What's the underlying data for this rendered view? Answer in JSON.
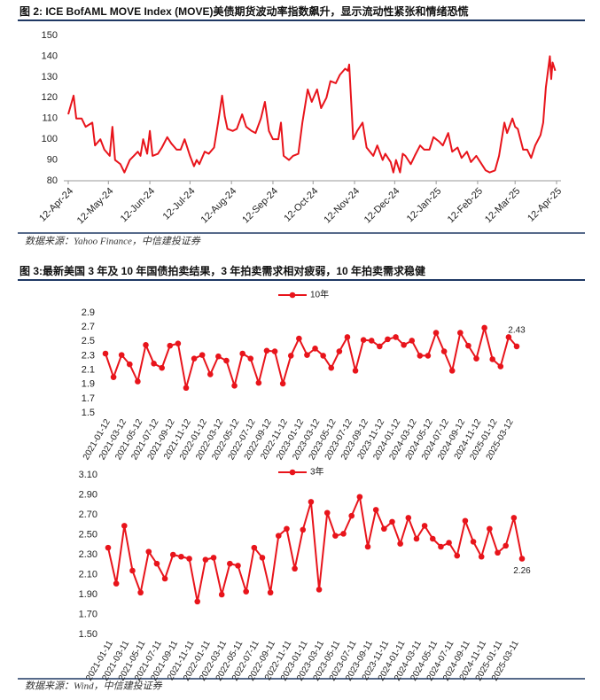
{
  "chart_data": [
    {
      "type": "line",
      "title": "图 2: ICE BofAML MOVE Index (MOVE)美债期货波动率指数飙升，显示流动性紧张和情绪恐慌",
      "source": "数据来源：Yahoo Finance，中信建投证券",
      "x": [
        "2024-04-12",
        "2024-04-16",
        "2024-04-18",
        "2024-04-22",
        "2024-04-25",
        "2024-04-30",
        "2024-05-02",
        "2024-05-06",
        "2024-05-09",
        "2024-05-13",
        "2024-05-15",
        "2024-05-17",
        "2024-05-21",
        "2024-05-24",
        "2024-05-28",
        "2024-05-31",
        "2024-06-03",
        "2024-06-05",
        "2024-06-07",
        "2024-06-10",
        "2024-06-12",
        "2024-06-14",
        "2024-06-18",
        "2024-06-21",
        "2024-06-25",
        "2024-06-28",
        "2024-07-02",
        "2024-07-05",
        "2024-07-08",
        "2024-07-10",
        "2024-07-12",
        "2024-07-15",
        "2024-07-17",
        "2024-07-19",
        "2024-07-23",
        "2024-07-26",
        "2024-07-30",
        "2024-08-02",
        "2024-08-05",
        "2024-08-07",
        "2024-08-09",
        "2024-08-13",
        "2024-08-16",
        "2024-08-20",
        "2024-08-23",
        "2024-08-27",
        "2024-08-30",
        "2024-09-03",
        "2024-09-06",
        "2024-09-09",
        "2024-09-12",
        "2024-09-16",
        "2024-09-18",
        "2024-09-20",
        "2024-09-24",
        "2024-09-27",
        "2024-10-01",
        "2024-10-04",
        "2024-10-08",
        "2024-10-11",
        "2024-10-15",
        "2024-10-18",
        "2024-10-22",
        "2024-10-25",
        "2024-10-29",
        "2024-11-01",
        "2024-11-05",
        "2024-11-07",
        "2024-11-08",
        "2024-11-11",
        "2024-11-14",
        "2024-11-18",
        "2024-11-21",
        "2024-11-26",
        "2024-11-29",
        "2024-12-03",
        "2024-12-05",
        "2024-12-09",
        "2024-12-11",
        "2024-12-13",
        "2024-12-16",
        "2024-12-18",
        "2024-12-20",
        "2024-12-24",
        "2024-12-27",
        "2024-12-31",
        "2025-01-03",
        "2025-01-07",
        "2025-01-10",
        "2025-01-14",
        "2025-01-17",
        "2025-01-21",
        "2025-01-24",
        "2025-01-28",
        "2025-01-31",
        "2025-02-04",
        "2025-02-07",
        "2025-02-11",
        "2025-02-13",
        "2025-02-18",
        "2025-02-21",
        "2025-02-25",
        "2025-02-28",
        "2025-03-04",
        "2025-03-06",
        "2025-03-10",
        "2025-03-12",
        "2025-03-14",
        "2025-03-18",
        "2025-03-21",
        "2025-03-24",
        "2025-03-27",
        "2025-03-31",
        "2025-04-02",
        "2025-04-04",
        "2025-04-07",
        "2025-04-08",
        "2025-04-09",
        "2025-04-11"
      ],
      "series": [
        {
          "color": "#e8141b",
          "values": [
            112,
            121,
            110,
            110,
            106,
            108,
            97,
            100,
            95,
            92,
            106,
            90,
            88,
            84,
            90,
            92,
            94,
            92,
            100,
            93,
            104,
            92,
            93,
            96,
            101,
            98,
            95,
            95,
            100,
            96,
            92,
            87,
            90,
            88,
            94,
            93,
            96,
            108,
            121,
            111,
            105,
            104,
            105,
            112,
            106,
            104,
            103,
            110,
            118,
            104,
            100,
            100,
            108,
            92,
            90,
            92,
            93,
            108,
            124,
            118,
            124,
            115,
            120,
            128,
            127,
            131,
            134,
            133,
            136,
            100,
            104,
            108,
            96,
            92,
            97,
            90,
            93,
            89,
            84,
            90,
            84,
            93,
            92,
            88,
            92,
            97,
            95,
            95,
            101,
            99,
            97,
            103,
            94,
            96,
            91,
            94,
            89,
            92,
            90,
            85,
            84,
            85,
            92,
            108,
            103,
            110,
            106,
            105,
            95,
            95,
            91,
            97,
            102,
            108,
            125,
            140,
            129,
            137,
            133
          ]
        }
      ],
      "xlim": [
        "2024-04-12",
        "2025-04-12"
      ],
      "xticks": [
        {
          "value": "2024-04-12",
          "label": "12-Apr-24"
        },
        {
          "value": "2024-05-12",
          "label": "12-May-24"
        },
        {
          "value": "2024-06-12",
          "label": "12-Jun-24"
        },
        {
          "value": "2024-07-12",
          "label": "12-Jul-24"
        },
        {
          "value": "2024-08-12",
          "label": "12-Aug-24"
        },
        {
          "value": "2024-09-12",
          "label": "12-Sep-24"
        },
        {
          "value": "2024-10-12",
          "label": "12-Oct-24"
        },
        {
          "value": "2024-11-12",
          "label": "12-Nov-24"
        },
        {
          "value": "2024-12-12",
          "label": "12-Dec-24"
        },
        {
          "value": "2025-01-12",
          "label": "12-Jan-25"
        },
        {
          "value": "2025-02-12",
          "label": "12-Feb-25"
        },
        {
          "value": "2025-03-12",
          "label": "12-Mar-25"
        },
        {
          "value": "2025-04-12",
          "label": "12-Apr-25"
        }
      ],
      "ylim": [
        80,
        150
      ],
      "yticks": [
        80,
        90,
        100,
        110,
        120,
        130,
        140,
        150
      ],
      "markers": false,
      "legend": false
    },
    {
      "type": "line",
      "title": "图 3:最新美国 3 年及 10 年国债拍卖结果，3 年拍卖需求相对疲弱，10 年拍卖需求稳健",
      "categories": [
        "2021-01-12",
        null,
        "2021-03-12",
        null,
        "2021-05-12",
        null,
        "2021-07-12",
        null,
        "2021-09-12",
        null,
        "2021-11-12",
        null,
        "2022-01-12",
        null,
        "2022-03-12",
        null,
        "2022-05-12",
        null,
        "2022-07-12",
        null,
        "2022-09-12",
        null,
        "2022-11-12",
        null,
        "2023-01-12",
        null,
        "2023-03-12",
        null,
        "2023-05-12",
        null,
        "2023-07-12",
        null,
        "2023-09-12",
        null,
        "2023-11-12",
        null,
        "2024-01-12",
        null,
        "2024-03-12",
        null,
        "2024-05-12",
        null,
        "2024-07-12",
        null,
        "2024-09-12",
        null,
        "2024-11-12",
        null,
        "2025-01-12",
        null,
        "2025-03-12",
        null
      ],
      "series": [
        {
          "name": "10年",
          "color": "#e8141b",
          "values": [
            2.33,
            2.0,
            2.31,
            2.18,
            1.94,
            2.45,
            2.19,
            2.13,
            2.44,
            2.47,
            1.85,
            2.26,
            2.31,
            2.04,
            2.29,
            2.23,
            1.88,
            2.33,
            2.26,
            1.92,
            2.37,
            2.36,
            1.91,
            2.3,
            2.54,
            2.31,
            2.4,
            2.3,
            2.13,
            2.36,
            2.56,
            2.09,
            2.52,
            2.51,
            2.43,
            2.53,
            2.56,
            2.45,
            2.51,
            2.3,
            2.3,
            2.62,
            2.36,
            2.09,
            2.62,
            2.44,
            2.26,
            2.69,
            2.25,
            2.15,
            2.56,
            2.43
          ]
        }
      ],
      "ylim": [
        1.5,
        2.9
      ],
      "yticks": [
        1.5,
        1.7,
        1.9,
        2.1,
        2.3,
        2.5,
        2.7,
        2.9
      ],
      "markers": true,
      "legend": "top",
      "label_last": true
    },
    {
      "type": "line",
      "source": "数据来源：Wind，中信建投证券",
      "categories": [
        "2021-01-11",
        null,
        "2021-03-11",
        null,
        "2021-05-11",
        null,
        "2021-07-11",
        null,
        "2021-09-11",
        null,
        "2021-11-11",
        null,
        "2022-01-11",
        null,
        "2022-03-11",
        null,
        "2022-05-11",
        null,
        "2022-07-11",
        null,
        "2022-09-11",
        null,
        "2022-11-11",
        null,
        "2023-01-11",
        null,
        "2023-03-11",
        null,
        "2023-05-11",
        null,
        "2023-07-11",
        null,
        "2023-09-11",
        null,
        "2023-11-11",
        null,
        "2024-01-11",
        null,
        "2024-03-11",
        null,
        "2024-05-11",
        null,
        "2024-07-11",
        null,
        "2024-09-11",
        null,
        "2024-11-11",
        null,
        "2025-01-11",
        null,
        "2025-03-11",
        null
      ],
      "series": [
        {
          "name": "3年",
          "color": "#e8141b",
          "values": [
            2.37,
            2.01,
            2.59,
            2.14,
            1.92,
            2.33,
            2.21,
            2.06,
            2.3,
            2.28,
            2.26,
            1.83,
            2.25,
            2.27,
            1.9,
            2.21,
            2.19,
            1.93,
            2.37,
            2.27,
            1.92,
            2.49,
            2.56,
            2.16,
            2.55,
            2.83,
            1.95,
            2.72,
            2.49,
            2.51,
            2.69,
            2.88,
            2.38,
            2.75,
            2.56,
            2.63,
            2.41,
            2.67,
            2.46,
            2.59,
            2.46,
            2.38,
            2.42,
            2.29,
            2.64,
            2.43,
            2.28,
            2.56,
            2.32,
            2.39,
            2.67,
            2.26
          ]
        }
      ],
      "ylim": [
        1.5,
        3.1
      ],
      "yticks": [
        {
          "value": 1.5,
          "label": "1.50"
        },
        {
          "value": 1.7,
          "label": "1.70"
        },
        {
          "value": 1.9,
          "label": "1.90"
        },
        {
          "value": 2.1,
          "label": "2.10"
        },
        {
          "value": 2.3,
          "label": "2.30"
        },
        {
          "value": 2.5,
          "label": "2.50"
        },
        {
          "value": 2.7,
          "label": "2.70"
        },
        {
          "value": 2.9,
          "label": "2.90"
        },
        {
          "value": 3.1,
          "label": "3.10"
        }
      ],
      "markers": true,
      "legend": "top",
      "label_last": true
    }
  ]
}
